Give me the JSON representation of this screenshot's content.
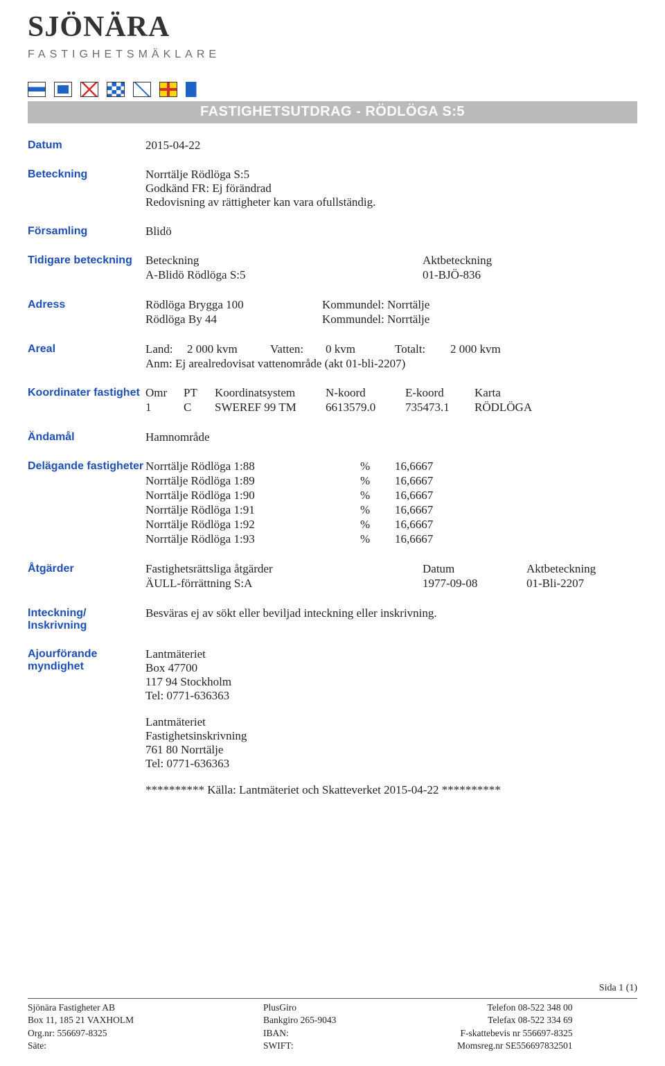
{
  "logo": {
    "line1": "SJÖNÄRA",
    "line2": "FASTIGHETSMÄKLARE"
  },
  "title_bar": "FASTIGHETSUTDRAG - RÖDLÖGA S:5",
  "labels": {
    "datum": "Datum",
    "beteckning": "Beteckning",
    "forsamling": "Församling",
    "tidigare": "Tidigare beteckning",
    "adress": "Adress",
    "areal": "Areal",
    "koordinater": "Koordinater fastighet",
    "andamal": "Ändamål",
    "delagande": "Delägande fastigheter",
    "atgarder": "Åtgärder",
    "inteckning": "Inteckning/ Inskrivning",
    "ajour": "Ajourförande myndighet"
  },
  "datum": "2015-04-22",
  "beteckning": {
    "line1": "Norrtälje Rödlöga S:5",
    "line2": "Godkänd FR: Ej förändrad",
    "line3": "Redovisning av rättigheter kan vara ofullständig."
  },
  "forsamling": "Blidö",
  "tidigare": {
    "h1": "Beteckning",
    "h2": "Aktbeteckning",
    "v1": "A-Blidö  Rödlöga S:5",
    "v2": "01-BJÖ-836"
  },
  "adress": {
    "rows": [
      {
        "a": "Rödlöga Brygga 100",
        "b": "Kommundel: Norrtälje"
      },
      {
        "a": "Rödlöga By 44",
        "b": "Kommundel: Norrtälje"
      }
    ]
  },
  "areal": {
    "land_lbl": "Land:",
    "land_val": "2 000 kvm",
    "vatten_lbl": "Vatten:",
    "vatten_val": "0 kvm",
    "tot_lbl": "Totalt:",
    "tot_val": "2 000 kvm",
    "anm": "Anm: Ej arealredovisat vattenområde (akt 01-bli-2207)"
  },
  "koordinater": {
    "headers": [
      "Omr",
      "PT",
      "Koordinatsystem",
      "N-koord",
      "E-koord",
      "Karta"
    ],
    "values": [
      "1",
      "C",
      "SWEREF 99 TM",
      "6613579.0",
      "735473.1",
      "RÖDLÖGA"
    ]
  },
  "andamal": "Hamnområde",
  "delagande": {
    "rows": [
      {
        "a": "Norrtälje Rödlöga 1:88",
        "b": "%",
        "c": "16,6667"
      },
      {
        "a": "Norrtälje Rödlöga 1:89",
        "b": "%",
        "c": "16,6667"
      },
      {
        "a": "Norrtälje Rödlöga 1:90",
        "b": "%",
        "c": "16,6667"
      },
      {
        "a": "Norrtälje Rödlöga 1:91",
        "b": "%",
        "c": "16,6667"
      },
      {
        "a": "Norrtälje Rödlöga 1:92",
        "b": "%",
        "c": "16,6667"
      },
      {
        "a": "Norrtälje Rödlöga 1:93",
        "b": "%",
        "c": "16,6667"
      }
    ]
  },
  "atgarder": {
    "h1": "Fastighetsrättsliga åtgärder",
    "h2": "Datum",
    "h3": "Aktbeteckning",
    "v1": "ÄULL-förrättning  S:A",
    "v2": "1977-09-08",
    "v3": "01-Bli-2207"
  },
  "inteckning": "Besväras ej av sökt eller beviljad inteckning eller inskrivning.",
  "ajour": {
    "block1": [
      "Lantmäteriet",
      "Box 47700",
      "117 94 Stockholm",
      "Tel: 0771-636363"
    ],
    "block2": [
      "Lantmäteriet",
      "Fastighetsinskrivning",
      "761 80 Norrtälje",
      "Tel: 0771-636363"
    ]
  },
  "kalla": "********** Källa: Lantmäteriet och Skatteverket 2015-04-22 **********",
  "page_num": "Sida 1 (1)",
  "footer": {
    "col1": [
      "Sjönära Fastigheter AB",
      "Box 11, 185 21  VAXHOLM",
      "Org.nr: 556697-8325",
      "Säte:"
    ],
    "col2": [
      "PlusGiro",
      "Bankgiro 265-9043",
      "IBAN:",
      "SWIFT:"
    ],
    "col3": [
      "Telefon 08-522 348 00",
      "Telefax 08-522 334 69",
      "F-skattebevis nr 556697-8325",
      "Momsreg.nr SE556697832501"
    ]
  }
}
